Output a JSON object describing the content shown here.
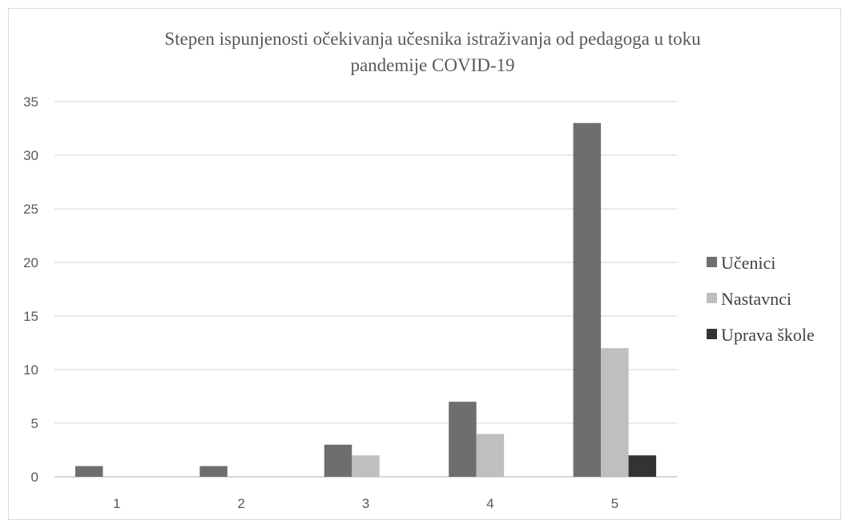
{
  "chart_data": {
    "type": "bar",
    "title": "Stepen ispunjenosti očekivanja učesnika istraživanja  od pedagoga u toku pandemije COVID-19",
    "title_lines": [
      "Stepen ispunjenosti očekivanja učesnika istraživanja  od pedagoga u toku",
      "pandemije COVID-19"
    ],
    "xlabel": "",
    "ylabel": "",
    "categories": [
      "1",
      "2",
      "3",
      "4",
      "5"
    ],
    "series": [
      {
        "name": "Učenici",
        "color": "#6e6e6e",
        "values": [
          1,
          1,
          3,
          7,
          33
        ]
      },
      {
        "name": "Nastavnci",
        "color": "#bfbfbf",
        "values": [
          0,
          0,
          2,
          4,
          12
        ]
      },
      {
        "name": "Uprava škole",
        "color": "#333333",
        "values": [
          0,
          0,
          0,
          0,
          2
        ]
      }
    ],
    "ylim": [
      0,
      35
    ],
    "yticks": [
      0,
      5,
      10,
      15,
      20,
      25,
      30,
      35
    ],
    "grid": true,
    "legend_position": "right",
    "gridline_color": "#d9d9d9",
    "axis_color": "#bfbfbf",
    "text_color": "#595959"
  }
}
